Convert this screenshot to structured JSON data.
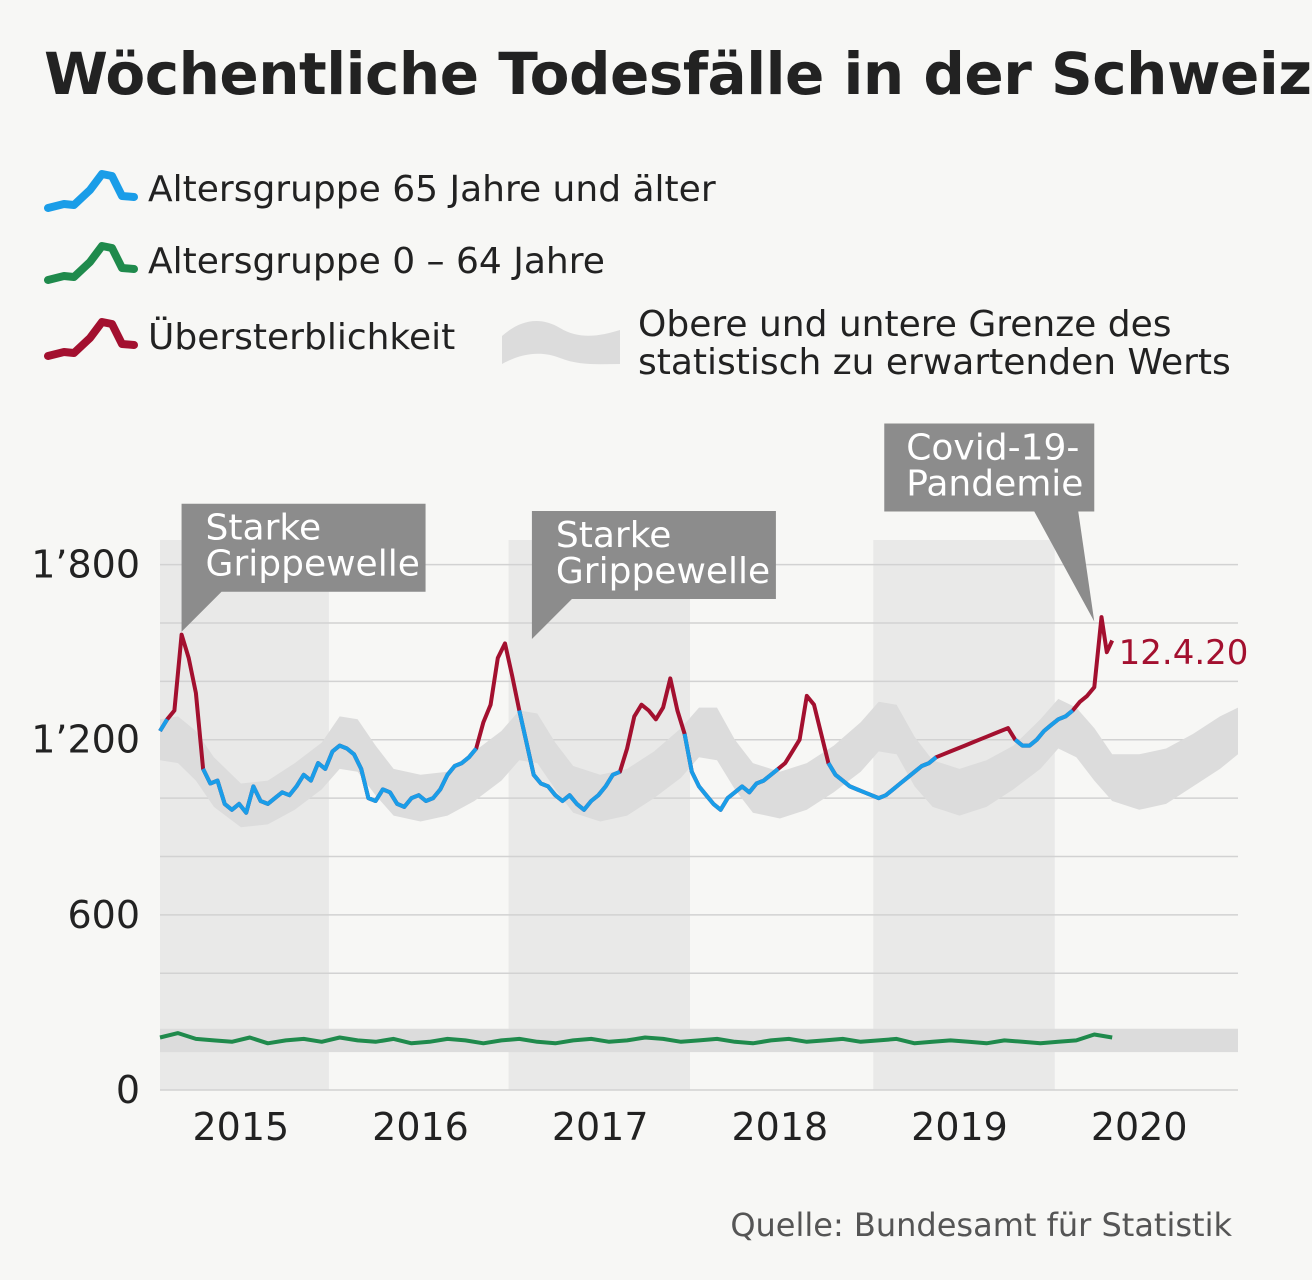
{
  "title": "Wöchentliche Todesfälle in der Schweiz",
  "legend": {
    "over65": "Altersgruppe 65 Jahre und älter",
    "under65": "Altersgruppe 0 – 64 Jahre",
    "excess": "Übersterblichkeit",
    "band_line1": "Obere und untere Grenze des",
    "band_line2": "statistisch zu erwartenden Werts"
  },
  "colors": {
    "over65": "#1a9de8",
    "under65": "#1f8a4c",
    "excess": "#a3102f",
    "band": "#dcdcdc",
    "annotation": "#8c8c8c",
    "year_shade": "#e9e9e8"
  },
  "source": "Quelle: Bundesamt für Statistik",
  "chart_data": {
    "type": "line",
    "title": "Wöchentliche Todesfälle in der Schweiz",
    "y_ticks": [
      {
        "value": 0,
        "label": "0"
      },
      {
        "value": 600,
        "label": "600"
      },
      {
        "value": 1200,
        "label": "1’200"
      },
      {
        "value": 1800,
        "label": "1’800"
      }
    ],
    "ylim": [
      0,
      1850
    ],
    "xlim": [
      2015.0,
      2021.0
    ],
    "x_ticks": [
      {
        "value": 2015.45,
        "label": "2015"
      },
      {
        "value": 2016.45,
        "label": "2016"
      },
      {
        "value": 2017.45,
        "label": "2017"
      },
      {
        "value": 2018.45,
        "label": "2018"
      },
      {
        "value": 2019.45,
        "label": "2019"
      },
      {
        "value": 2020.45,
        "label": "2020"
      }
    ],
    "shaded_years": [
      [
        2015.0,
        2015.94
      ],
      [
        2016.94,
        2017.95
      ],
      [
        2018.97,
        2019.98
      ]
    ],
    "grid": true,
    "annotations": [
      {
        "text": "Starke\nGrippewelle",
        "x": 2015.12,
        "y": 1570
      },
      {
        "text": "Starke\nGrippewelle",
        "x": 2017.07,
        "y": 1545
      },
      {
        "text": "Covid-19-\nPandemie",
        "x": 2020.2,
        "y": 1605
      }
    ],
    "end_label": {
      "text": "12.4.20",
      "x": 2020.28,
      "y": 1500
    },
    "expected_band": {
      "x": [
        2015.0,
        2015.1,
        2015.2,
        2015.3,
        2015.45,
        2015.6,
        2015.75,
        2015.9,
        2016.0,
        2016.1,
        2016.2,
        2016.3,
        2016.45,
        2016.6,
        2016.75,
        2016.9,
        2017.0,
        2017.1,
        2017.2,
        2017.3,
        2017.45,
        2017.6,
        2017.75,
        2017.9,
        2018.0,
        2018.1,
        2018.2,
        2018.3,
        2018.45,
        2018.6,
        2018.75,
        2018.9,
        2019.0,
        2019.1,
        2019.2,
        2019.3,
        2019.45,
        2019.6,
        2019.75,
        2019.9,
        2020.0,
        2020.1,
        2020.2,
        2020.3,
        2020.45,
        2020.6,
        2020.75,
        2020.9,
        2021.0
      ],
      "upper": [
        1270,
        1280,
        1230,
        1140,
        1050,
        1060,
        1120,
        1190,
        1280,
        1270,
        1180,
        1100,
        1080,
        1090,
        1160,
        1230,
        1300,
        1290,
        1190,
        1110,
        1080,
        1100,
        1160,
        1240,
        1310,
        1310,
        1200,
        1120,
        1090,
        1120,
        1180,
        1260,
        1330,
        1320,
        1210,
        1130,
        1100,
        1130,
        1180,
        1270,
        1340,
        1310,
        1240,
        1150,
        1150,
        1170,
        1220,
        1280,
        1310
      ],
      "lower": [
        1130,
        1120,
        1060,
        970,
        900,
        910,
        960,
        1030,
        1100,
        1090,
        1010,
        940,
        920,
        940,
        990,
        1060,
        1130,
        1120,
        1030,
        950,
        920,
        940,
        1000,
        1070,
        1140,
        1130,
        1030,
        950,
        930,
        960,
        1020,
        1090,
        1160,
        1150,
        1040,
        970,
        940,
        970,
        1030,
        1100,
        1170,
        1140,
        1060,
        990,
        960,
        980,
        1040,
        1100,
        1150
      ]
    },
    "expected_band_under65": {
      "x": [
        2015.0,
        2016.0,
        2017.0,
        2018.0,
        2019.0,
        2020.0,
        2021.0
      ],
      "upper": [
        210,
        210,
        210,
        210,
        210,
        210,
        210
      ],
      "lower": [
        130,
        130,
        130,
        130,
        130,
        130,
        130
      ]
    },
    "series": [
      {
        "name": "Altersgruppe 65 Jahre und älter",
        "x": [
          2015.0,
          2015.04,
          2015.08,
          2015.12,
          2015.16,
          2015.2,
          2015.24,
          2015.28,
          2015.32,
          2015.36,
          2015.4,
          2015.44,
          2015.48,
          2015.52,
          2015.56,
          2015.6,
          2015.64,
          2015.68,
          2015.72,
          2015.76,
          2015.8,
          2015.84,
          2015.88,
          2015.92,
          2015.96,
          2016.0,
          2016.04,
          2016.08,
          2016.12,
          2016.16,
          2016.2,
          2016.24,
          2016.28,
          2016.32,
          2016.36,
          2016.4,
          2016.44,
          2016.48,
          2016.52,
          2016.56,
          2016.6,
          2016.64,
          2016.68,
          2016.72,
          2016.76,
          2016.8,
          2016.84,
          2016.88,
          2016.92,
          2016.96,
          2017.0,
          2017.04,
          2017.08,
          2017.12,
          2017.16,
          2017.2,
          2017.24,
          2017.28,
          2017.32,
          2017.36,
          2017.4,
          2017.44,
          2017.48,
          2017.52,
          2017.56,
          2017.6,
          2017.64,
          2017.68,
          2017.72,
          2017.76,
          2017.8,
          2017.84,
          2017.88,
          2017.92,
          2017.96,
          2018.0,
          2018.04,
          2018.08,
          2018.12,
          2018.16,
          2018.2,
          2018.24,
          2018.28,
          2018.32,
          2018.36,
          2018.4,
          2018.44,
          2018.48,
          2018.52,
          2018.56,
          2018.6,
          2018.64,
          2018.68,
          2018.72,
          2018.76,
          2018.8,
          2018.84,
          2018.88,
          2018.92,
          2018.96,
          2019.0,
          2019.04,
          2019.08,
          2019.12,
          2019.16,
          2019.2,
          2019.24,
          2019.28,
          2019.32,
          2019.36,
          2019.4,
          2019.44,
          2019.48,
          2019.52,
          2019.56,
          2019.6,
          2019.64,
          2019.68,
          2019.72,
          2019.76,
          2019.8,
          2019.84,
          2019.88,
          2019.92,
          2019.96,
          2020.0,
          2020.04,
          2020.08,
          2020.12,
          2020.16,
          2020.2,
          2020.24,
          2020.27,
          2020.3
        ],
        "y": [
          1230,
          1270,
          1300,
          1560,
          1480,
          1360,
          1100,
          1050,
          1060,
          980,
          960,
          980,
          950,
          1040,
          990,
          980,
          1000,
          1020,
          1010,
          1040,
          1080,
          1060,
          1120,
          1100,
          1160,
          1180,
          1170,
          1150,
          1100,
          1000,
          990,
          1030,
          1020,
          980,
          970,
          1000,
          1010,
          990,
          1000,
          1030,
          1080,
          1110,
          1120,
          1140,
          1170,
          1260,
          1320,
          1480,
          1530,
          1420,
          1300,
          1190,
          1080,
          1050,
          1040,
          1010,
          990,
          1010,
          980,
          960,
          990,
          1010,
          1040,
          1080,
          1090,
          1170,
          1280,
          1320,
          1300,
          1270,
          1310,
          1410,
          1300,
          1220,
          1090,
          1040,
          1010,
          980,
          960,
          1000,
          1020,
          1040,
          1020,
          1050,
          1060,
          1080,
          1100,
          1120,
          1160,
          1200,
          1350,
          1320,
          1220,
          1120,
          1080,
          1060,
          1040,
          1030,
          1020,
          1010,
          1000,
          1010,
          1030,
          1050,
          1070,
          1090,
          1110,
          1120,
          1140,
          1150,
          1160,
          1170,
          1180,
          1190,
          1200,
          1210,
          1220,
          1230,
          1240,
          1200,
          1180,
          1180,
          1200,
          1230,
          1250,
          1270,
          1280,
          1300,
          1330,
          1350,
          1380,
          1620,
          1500,
          1540
        ]
      },
      {
        "name": "Altersgruppe 0 – 64 Jahre",
        "x": [
          2015.0,
          2015.1,
          2015.2,
          2015.3,
          2015.4,
          2015.5,
          2015.6,
          2015.7,
          2015.8,
          2015.9,
          2016.0,
          2016.1,
          2016.2,
          2016.3,
          2016.4,
          2016.5,
          2016.6,
          2016.7,
          2016.8,
          2016.9,
          2017.0,
          2017.1,
          2017.2,
          2017.3,
          2017.4,
          2017.5,
          2017.6,
          2017.7,
          2017.8,
          2017.9,
          2018.0,
          2018.1,
          2018.2,
          2018.3,
          2018.4,
          2018.5,
          2018.6,
          2018.7,
          2018.8,
          2018.9,
          2019.0,
          2019.1,
          2019.2,
          2019.3,
          2019.4,
          2019.5,
          2019.6,
          2019.7,
          2019.8,
          2019.9,
          2020.0,
          2020.1,
          2020.2,
          2020.3
        ],
        "y": [
          180,
          195,
          175,
          170,
          165,
          180,
          160,
          170,
          175,
          165,
          180,
          170,
          165,
          175,
          160,
          165,
          175,
          170,
          160,
          170,
          175,
          165,
          160,
          170,
          175,
          165,
          170,
          180,
          175,
          165,
          170,
          175,
          165,
          160,
          170,
          175,
          165,
          170,
          175,
          165,
          170,
          175,
          160,
          165,
          170,
          165,
          160,
          170,
          165,
          160,
          165,
          170,
          190,
          180
        ]
      }
    ]
  }
}
